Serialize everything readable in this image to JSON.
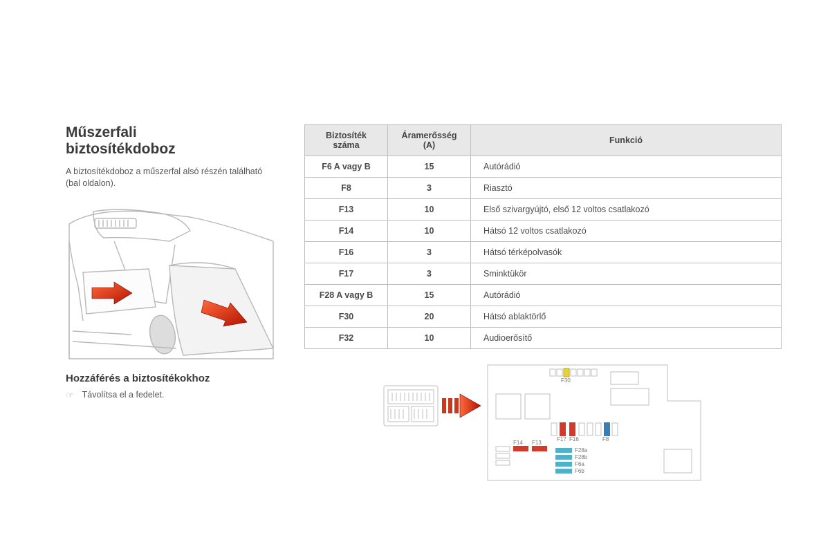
{
  "title_line1": "Műszerfali",
  "title_line2": "biztosítékdoboz",
  "intro": "A biztosítékdoboz a műszerfal alsó részén található (bal oldalon).",
  "subheading": "Hozzáférés a biztosítékokhoz",
  "instruction_bullet": "☞",
  "instruction_text": "Távolítsa el a fedelet.",
  "table": {
    "headers": {
      "col1_line1": "Biztosíték",
      "col1_line2": "száma",
      "col2_line1": "Áramerősség",
      "col2_line2": "(A)",
      "col3": "Funkció"
    },
    "rows": [
      {
        "num": "F6 A vagy B",
        "amp": "15",
        "func": "Autórádió"
      },
      {
        "num": "F8",
        "amp": "3",
        "func": "Riasztó"
      },
      {
        "num": "F13",
        "amp": "10",
        "func": "Első szivargyújtó, első 12 voltos csatlakozó"
      },
      {
        "num": "F14",
        "amp": "10",
        "func": "Hátsó 12 voltos csatlakozó"
      },
      {
        "num": "F16",
        "amp": "3",
        "func": "Hátsó térképolvasók"
      },
      {
        "num": "F17",
        "amp": "3",
        "func": "Sminktükör"
      },
      {
        "num": "F28 A vagy B",
        "amp": "15",
        "func": "Autórádió"
      },
      {
        "num": "F30",
        "amp": "20",
        "func": "Hátsó ablaktörlő"
      },
      {
        "num": "F32",
        "amp": "10",
        "func": "Audioerősítő"
      }
    ]
  },
  "fusebox_labels": {
    "top": "F30",
    "mid": [
      "F17",
      "F16"
    ],
    "midright": "F8",
    "leftcol": [
      "F14",
      "F13"
    ],
    "rightstack": [
      "F28a",
      "F28b",
      "F6a",
      "F6b"
    ]
  },
  "colors": {
    "page_bg": "#ffffff",
    "text": "#4a4a4a",
    "heading": "#3a3a3a",
    "table_border": "#bdbdbd",
    "table_header_bg": "#e8e8e8",
    "diagram_stroke": "#bfbfbf",
    "diagram_stroke_dark": "#888888",
    "arrow_fill_light": "#ff5a3a",
    "arrow_fill_dark": "#b31200",
    "fuse_red": "#d23a2a",
    "fuse_blue": "#3a7fb3",
    "fuse_yellow": "#e8d23a",
    "fuse_cyan": "#4fb0c9"
  }
}
